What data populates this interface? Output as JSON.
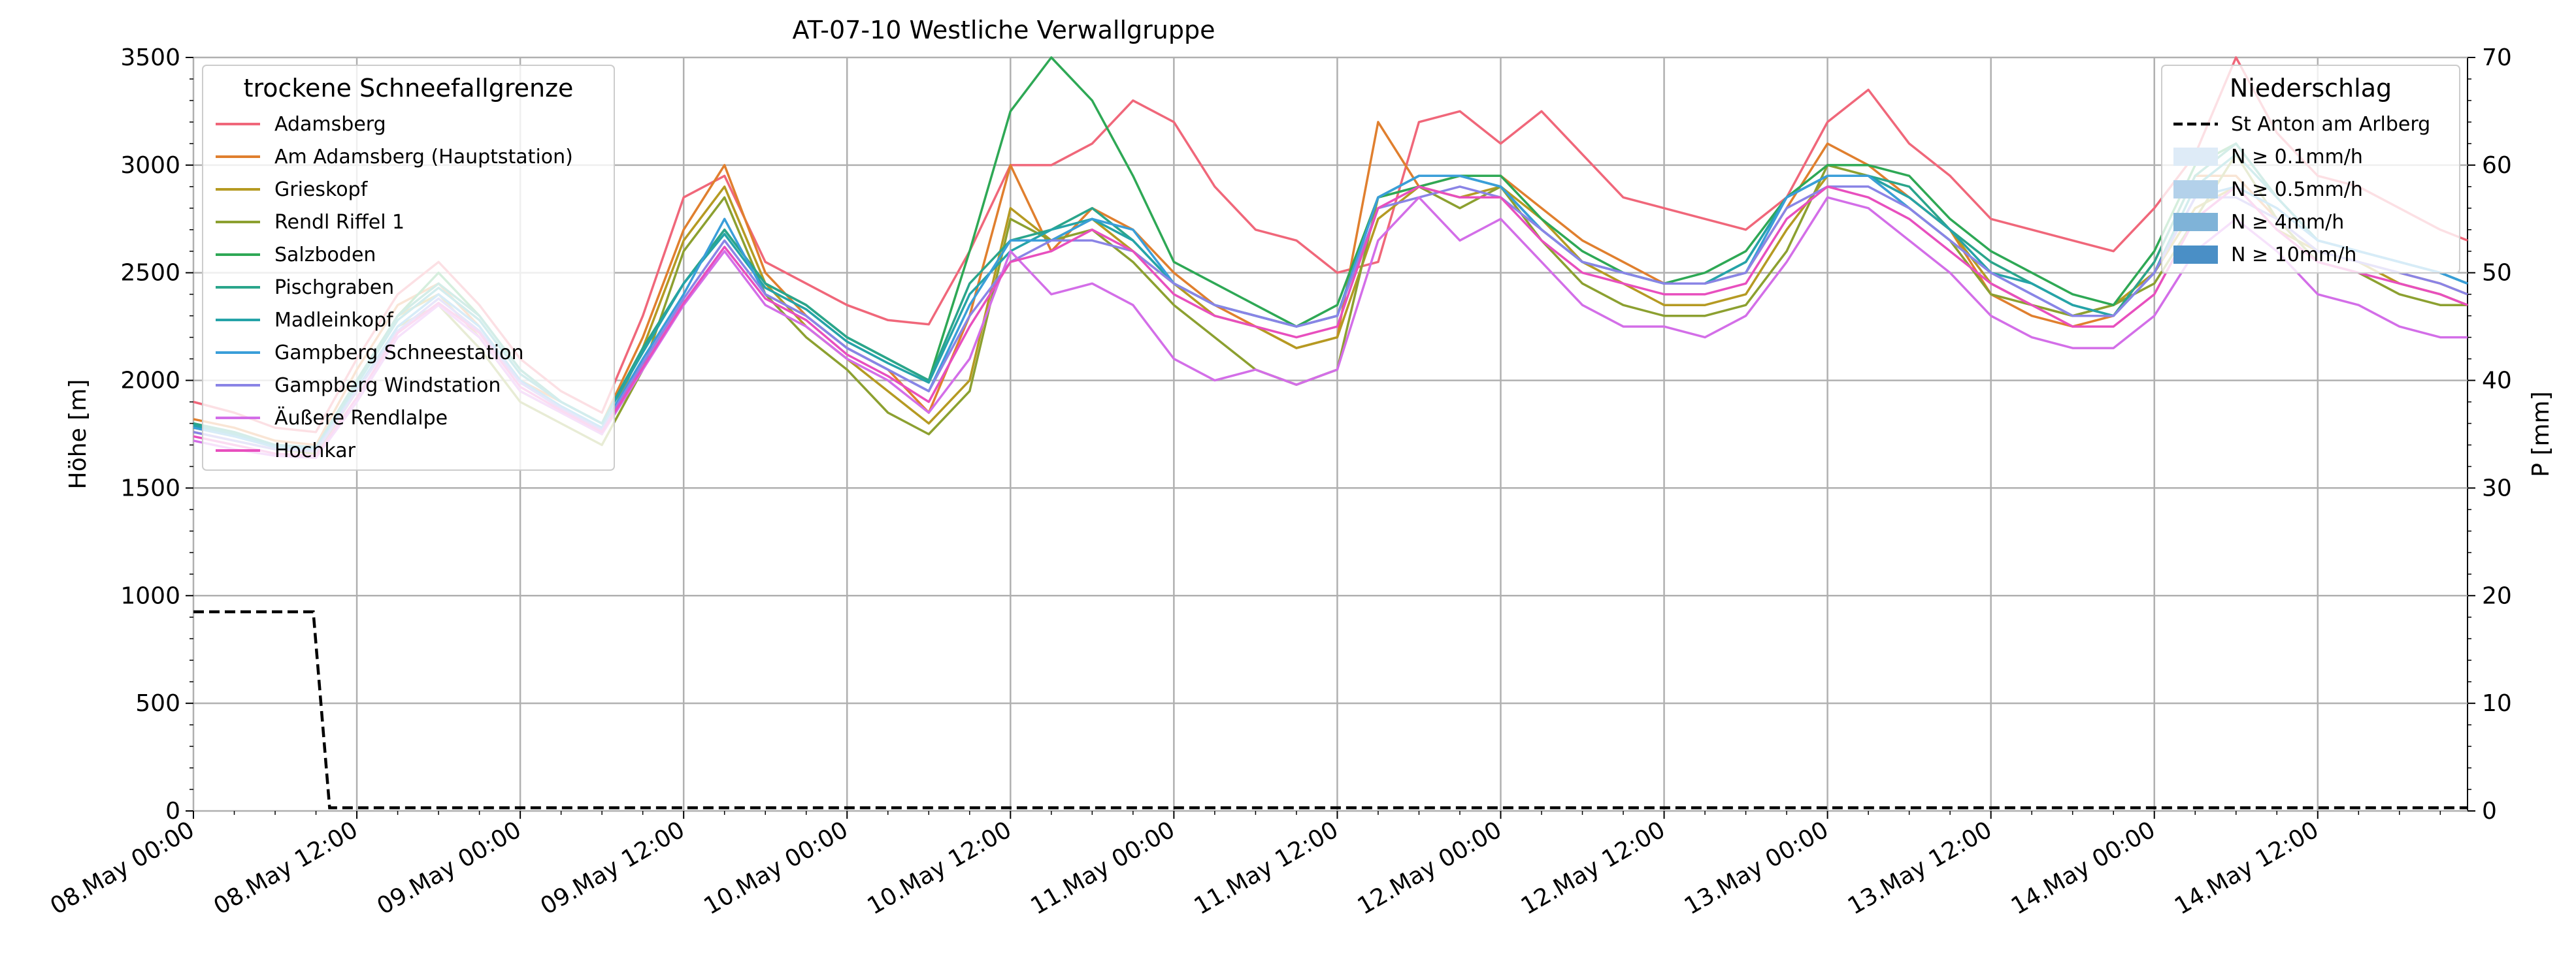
{
  "chart_data": {
    "type": "line",
    "title": "AT-07-10 Westliche Verwallgruppe",
    "ylabel": "Höhe [m]",
    "y2label": "P [mm]",
    "ylim": [
      0,
      3500
    ],
    "y2lim": [
      0,
      70
    ],
    "yticks": [
      0,
      500,
      1000,
      1500,
      2000,
      2500,
      3000,
      3500
    ],
    "y2ticks": [
      0,
      10,
      20,
      30,
      40,
      50,
      60,
      70
    ],
    "x_hours_range": [
      0,
      167
    ],
    "x_hours": [
      0,
      3,
      6,
      9,
      12,
      15,
      18,
      21,
      24,
      27,
      30,
      33,
      36,
      39,
      42,
      45,
      48,
      51,
      54,
      57,
      60,
      63,
      66,
      69,
      72,
      75,
      78,
      81,
      84,
      87,
      90,
      93,
      96,
      99,
      102,
      105,
      108,
      111,
      114,
      117,
      120,
      123,
      126,
      129,
      132,
      135,
      138,
      141,
      144,
      147,
      150,
      153,
      156,
      159,
      162,
      165,
      167
    ],
    "xticks_hours": [
      0,
      12,
      24,
      36,
      48,
      60,
      72,
      84,
      96,
      108,
      120,
      132,
      144,
      156
    ],
    "xtick_labels": [
      "08.May 00:00",
      "08.May 12:00",
      "09.May 00:00",
      "09.May 12:00",
      "10.May 00:00",
      "10.May 12:00",
      "11.May 00:00",
      "11.May 12:00",
      "12.May 00:00",
      "12.May 12:00",
      "13.May 00:00",
      "13.May 12:00",
      "14.May 00:00",
      "14.May 12:00"
    ],
    "grid": true,
    "legend_left": {
      "title": "trockene Schneefallgrenze",
      "placement": "top-left"
    },
    "legend_right": {
      "title": "Niederschlag",
      "placement": "top-right",
      "entries": [
        {
          "label": "St Anton am Arlberg",
          "style": "dashed",
          "color": "#000000"
        },
        {
          "label": "N ≥ 0.1mm/h",
          "color": "#deebf7"
        },
        {
          "label": "N ≥ 0.5mm/h",
          "color": "#b3d1ea"
        },
        {
          "label": "N ≥ 4mm/h",
          "color": "#7fb3d8"
        },
        {
          "label": "N ≥ 10mm/h",
          "color": "#4a8fc6"
        }
      ]
    },
    "series": [
      {
        "name": "Adamsberg",
        "color": "#f0677a",
        "values": [
          1900,
          1850,
          1780,
          1760,
          2100,
          2400,
          2550,
          2350,
          2100,
          1950,
          1850,
          2300,
          2850,
          2950,
          2550,
          2450,
          2350,
          2280,
          2260,
          2600,
          3000,
          3000,
          3100,
          3300,
          3200,
          2900,
          2700,
          2650,
          2500,
          2550,
          3200,
          3250,
          3100,
          3250,
          3050,
          2850,
          2800,
          2750,
          2700,
          2850,
          3200,
          3350,
          3100,
          2950,
          2750,
          2700,
          2650,
          2600,
          2800,
          3050,
          3500,
          3150,
          2950,
          2900,
          2800,
          2700,
          2650
        ]
      },
      {
        "name": "Am Adamsberg (Hauptstation)",
        "color": "#e07f2e",
        "values": [
          1820,
          1780,
          1720,
          1700,
          2050,
          2350,
          2450,
          2250,
          2000,
          1900,
          1800,
          2200,
          2700,
          3000,
          2500,
          2300,
          2150,
          2050,
          1850,
          2300,
          3000,
          2600,
          2800,
          2700,
          2500,
          2350,
          2250,
          2150,
          2200,
          3200,
          2900,
          2950,
          2950,
          2800,
          2650,
          2550,
          2450,
          2450,
          2500,
          2800,
          3100,
          3000,
          2850,
          2700,
          2400,
          2300,
          2250,
          2300,
          2550,
          2950,
          2950,
          2750,
          2600,
          2550,
          2500,
          2450,
          2400
        ]
      },
      {
        "name": "Grieskopf",
        "color": "#b59a22",
        "values": [
          1780,
          1740,
          1700,
          1680,
          2000,
          2300,
          2400,
          2200,
          1950,
          1850,
          1750,
          2150,
          2650,
          2900,
          2450,
          2250,
          2100,
          1950,
          1800,
          2000,
          2800,
          2650,
          2750,
          2600,
          2450,
          2300,
          2250,
          2150,
          2200,
          2750,
          2900,
          2850,
          2900,
          2750,
          2550,
          2450,
          2350,
          2350,
          2400,
          2700,
          2950,
          2950,
          2850,
          2700,
          2450,
          2350,
          2300,
          2350,
          2500,
          2800,
          2900,
          2700,
          2600,
          2550,
          2450,
          2400,
          2350
        ]
      },
      {
        "name": "Rendl Riffel 1",
        "color": "#8ca030",
        "values": [
          1760,
          1720,
          1680,
          1660,
          1950,
          2250,
          2350,
          2150,
          1900,
          1800,
          1700,
          2050,
          2600,
          2850,
          2400,
          2200,
          2050,
          1850,
          1750,
          1950,
          2750,
          2650,
          2700,
          2550,
          2350,
          2200,
          2050,
          1980,
          2050,
          2850,
          2900,
          2800,
          2900,
          2650,
          2450,
          2350,
          2300,
          2300,
          2350,
          2600,
          3000,
          2950,
          2800,
          2650,
          2400,
          2350,
          2300,
          2350,
          2450,
          2750,
          3050,
          2750,
          2550,
          2500,
          2400,
          2350,
          2350
        ]
      },
      {
        "name": "Salzboden",
        "color": "#2ea855",
        "values": [
          1800,
          1750,
          1700,
          1680,
          2000,
          2300,
          2500,
          2300,
          2050,
          1900,
          1800,
          2150,
          2450,
          2700,
          2450,
          2350,
          2200,
          2100,
          2000,
          2600,
          3250,
          3500,
          3300,
          2950,
          2550,
          2450,
          2350,
          2250,
          2350,
          2850,
          2900,
          2950,
          2950,
          2750,
          2600,
          2500,
          2450,
          2500,
          2600,
          2850,
          3000,
          3000,
          2950,
          2750,
          2600,
          2500,
          2400,
          2350,
          2600,
          3000,
          3100,
          2850,
          2650,
          2600,
          2550,
          2500,
          2450
        ]
      },
      {
        "name": "Pischgraben",
        "color": "#2aa58b",
        "values": [
          1800,
          1760,
          1700,
          1690,
          2000,
          2300,
          2450,
          2300,
          2050,
          1900,
          1800,
          2150,
          2450,
          2700,
          2450,
          2350,
          2200,
          2100,
          2000,
          2450,
          2650,
          2700,
          2800,
          2650,
          2450,
          2350,
          2300,
          2250,
          2300,
          2850,
          2950,
          2950,
          2900,
          2700,
          2550,
          2500,
          2450,
          2450,
          2550,
          2850,
          2950,
          2950,
          2900,
          2700,
          2550,
          2450,
          2350,
          2300,
          2550,
          2950,
          3100,
          2850,
          2650,
          2600,
          2550,
          2500,
          2450
        ]
      },
      {
        "name": "Madleinkopf",
        "color": "#25a3a8",
        "values": [
          1790,
          1750,
          1700,
          1690,
          1980,
          2280,
          2430,
          2280,
          2030,
          1900,
          1800,
          2130,
          2450,
          2680,
          2430,
          2330,
          2180,
          2080,
          1990,
          2400,
          2600,
          2700,
          2750,
          2650,
          2450,
          2350,
          2300,
          2250,
          2300,
          2850,
          2950,
          2950,
          2900,
          2700,
          2550,
          2500,
          2450,
          2450,
          2550,
          2850,
          2950,
          2950,
          2850,
          2700,
          2500,
          2450,
          2350,
          2300,
          2500,
          2900,
          3050,
          2850,
          2650,
          2600,
          2550,
          2500,
          2450
        ]
      },
      {
        "name": "Gampberg Schneestation",
        "color": "#3a9ed9",
        "values": [
          1780,
          1740,
          1690,
          1680,
          1960,
          2250,
          2400,
          2250,
          2000,
          1880,
          1780,
          2100,
          2400,
          2750,
          2400,
          2300,
          2150,
          2050,
          1950,
          2350,
          2650,
          2650,
          2750,
          2700,
          2450,
          2350,
          2300,
          2250,
          2300,
          2850,
          2950,
          2950,
          2900,
          2700,
          2550,
          2500,
          2450,
          2450,
          2500,
          2850,
          2950,
          2950,
          2800,
          2650,
          2500,
          2400,
          2300,
          2300,
          2500,
          2850,
          2900,
          2800,
          2650,
          2600,
          2550,
          2500,
          2450
        ]
      },
      {
        "name": "Gampberg Windstation",
        "color": "#8a84e6",
        "values": [
          1760,
          1720,
          1680,
          1670,
          1950,
          2230,
          2380,
          2230,
          1990,
          1870,
          1770,
          2080,
          2380,
          2650,
          2400,
          2300,
          2150,
          2050,
          1950,
          2300,
          2550,
          2650,
          2650,
          2600,
          2450,
          2350,
          2300,
          2250,
          2300,
          2800,
          2850,
          2900,
          2850,
          2700,
          2550,
          2500,
          2450,
          2450,
          2500,
          2800,
          2900,
          2900,
          2800,
          2650,
          2500,
          2400,
          2300,
          2300,
          2500,
          2850,
          2850,
          2750,
          2600,
          2550,
          2500,
          2450,
          2400
        ]
      },
      {
        "name": "Äußere Rendlalpe",
        "color": "#d36ee8",
        "values": [
          1720,
          1680,
          1650,
          1640,
          1900,
          2200,
          2350,
          2200,
          1950,
          1850,
          1750,
          2050,
          2350,
          2600,
          2350,
          2250,
          2100,
          2000,
          1850,
          2100,
          2600,
          2400,
          2450,
          2350,
          2100,
          2000,
          2050,
          1980,
          2050,
          2650,
          2850,
          2650,
          2750,
          2550,
          2350,
          2250,
          2250,
          2200,
          2300,
          2550,
          2850,
          2800,
          2650,
          2500,
          2300,
          2200,
          2150,
          2150,
          2300,
          2600,
          2750,
          2600,
          2400,
          2350,
          2250,
          2200,
          2200
        ]
      },
      {
        "name": "Hochkar",
        "color": "#e84fbe",
        "values": [
          1740,
          1700,
          1660,
          1650,
          1920,
          2220,
          2360,
          2220,
          1970,
          1860,
          1760,
          2060,
          2360,
          2620,
          2380,
          2280,
          2120,
          2020,
          1900,
          2250,
          2550,
          2600,
          2700,
          2600,
          2400,
          2300,
          2250,
          2200,
          2250,
          2800,
          2900,
          2850,
          2850,
          2650,
          2500,
          2450,
          2400,
          2400,
          2450,
          2750,
          2900,
          2850,
          2750,
          2600,
          2450,
          2350,
          2250,
          2250,
          2400,
          2750,
          2900,
          2700,
          2550,
          2500,
          2450,
          2400,
          2350
        ]
      }
    ],
    "precipitation": {
      "name": "St Anton am Arlberg",
      "x_hours": [
        0,
        8.8,
        10,
        167
      ],
      "values_mm": [
        18.5,
        18.5,
        0.3,
        0.3
      ]
    }
  }
}
